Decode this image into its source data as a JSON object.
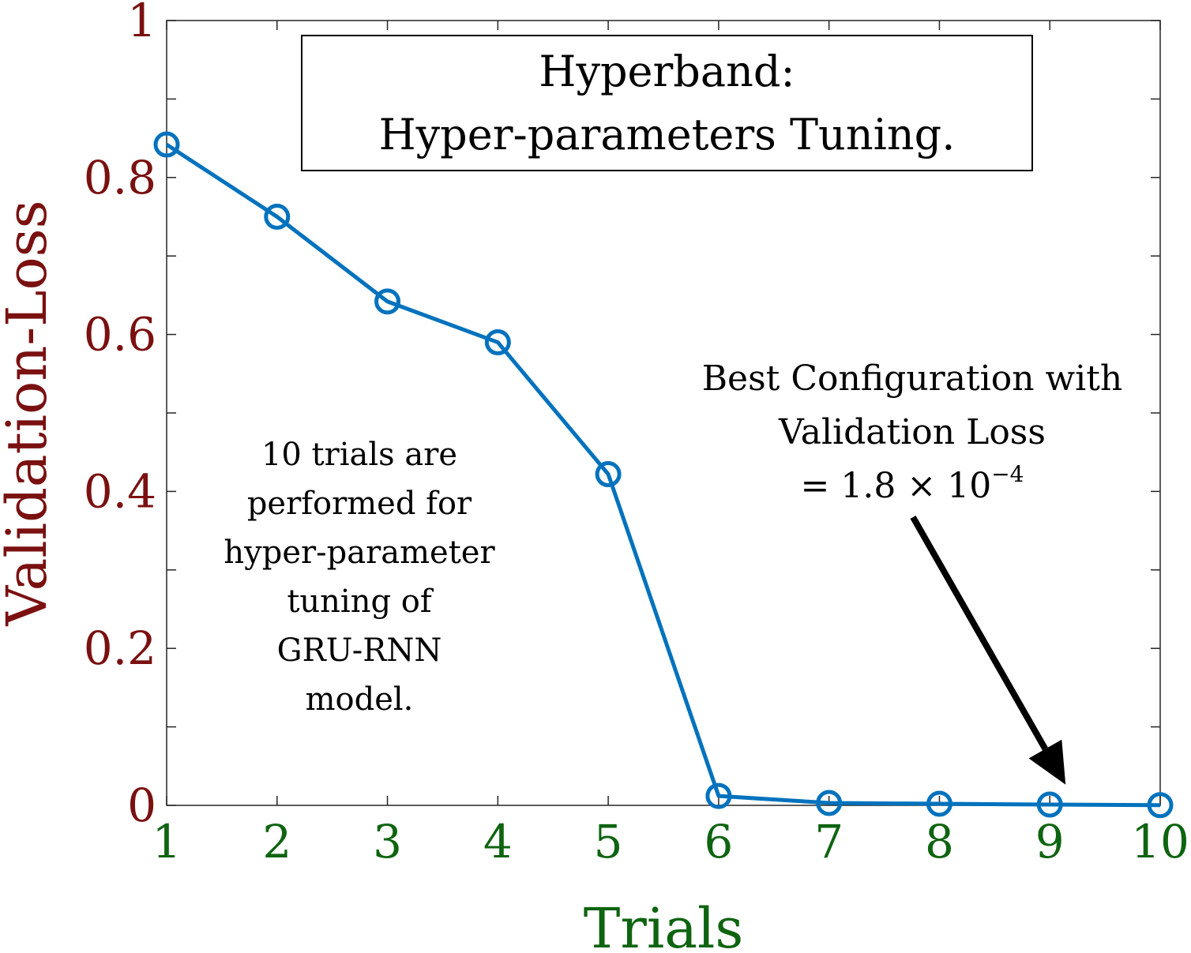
{
  "chart_data": {
    "type": "line",
    "title": [
      "Hyperband:",
      "Hyper-parameters Tuning."
    ],
    "xlabel": "Trials",
    "ylabel": "Validation-Loss",
    "xlim": [
      1,
      10
    ],
    "ylim": [
      0,
      1
    ],
    "x_ticks": [
      "1",
      "2",
      "3",
      "4",
      "5",
      "6",
      "7",
      "8",
      "9",
      "10"
    ],
    "y_ticks": [
      {
        "value": 0,
        "label": "0"
      },
      {
        "value": 0.2,
        "label": "0.2"
      },
      {
        "value": 0.4,
        "label": "0.4"
      },
      {
        "value": 0.6,
        "label": "0.6"
      },
      {
        "value": 0.8,
        "label": "0.8"
      },
      {
        "value": 1,
        "label": "1"
      }
    ],
    "series": [
      {
        "x": [
          1,
          2,
          3,
          4,
          5,
          6,
          7,
          8,
          9,
          10
        ],
        "values": [
          0.842,
          0.75,
          0.642,
          0.59,
          0.422,
          0.012,
          0.003,
          0.002,
          0.001,
          0.0002
        ],
        "color": "#0072BD",
        "marker": "circle"
      }
    ],
    "annotations": {
      "left_note": [
        "10 trials are",
        "performed for",
        "hyper-parameter",
        "tuning of",
        "GRU-RNN",
        "model."
      ],
      "right_note_line1": "Best Configuration with",
      "right_note_line2": "Validation Loss",
      "right_note_line3_prefix": "= 1.8 × 10",
      "right_note_line3_exp": "−4",
      "arrow_target": {
        "x": 9,
        "y": 0.0002
      }
    },
    "grid": false,
    "colors": {
      "ylabel": "#7A1010",
      "xlabel": "#0E6410",
      "line": "#0072BD"
    }
  }
}
